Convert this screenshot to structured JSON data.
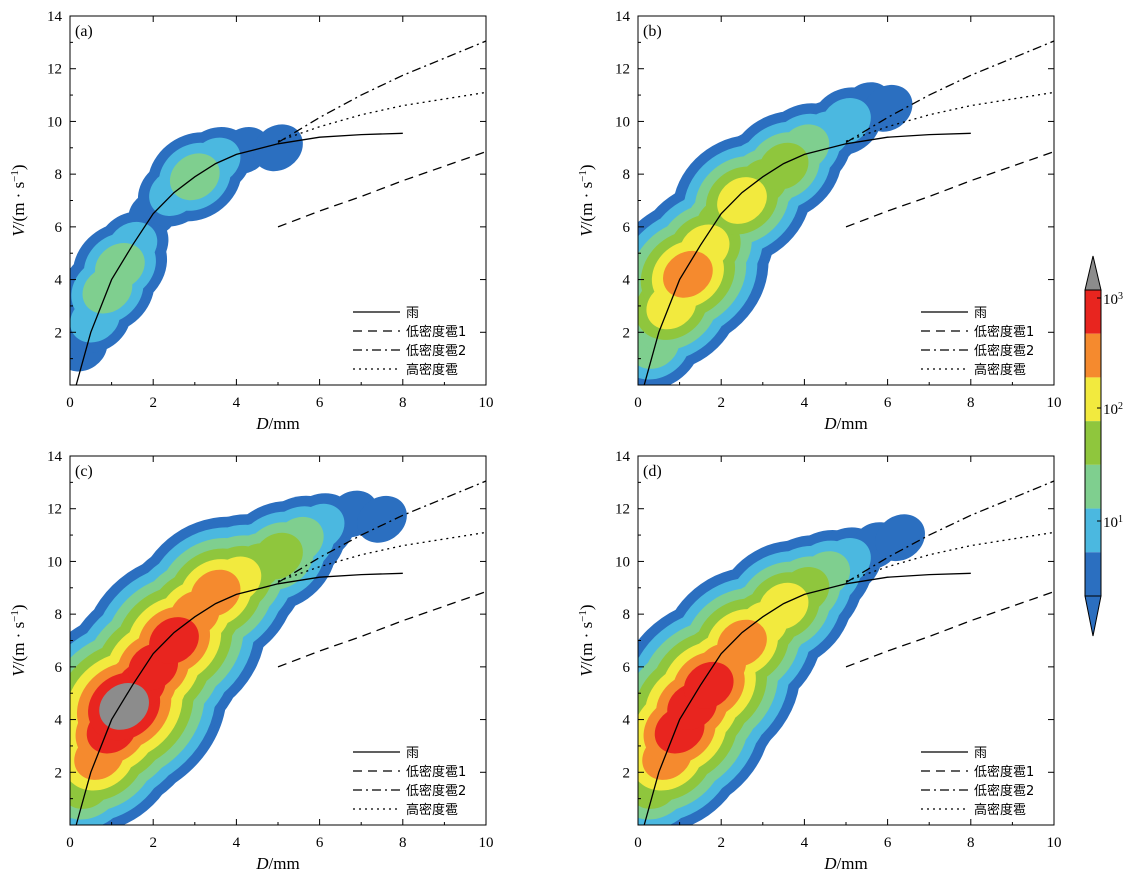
{
  "colors": {
    "levels": [
      "#2b6fc0",
      "#4bb8e0",
      "#7fcf8f",
      "#8fc63d",
      "#f2ea3e",
      "#f58a2e",
      "#e8251f",
      "#8c8c8c"
    ],
    "curve": "#000000"
  },
  "colorbar": {
    "tick_labels": [
      "10",
      "10",
      "10"
    ],
    "tick_exponents": [
      "3",
      "2",
      "1"
    ]
  },
  "chart_data": [
    {
      "type": "heatmap",
      "panel_label": "(a)",
      "xlabel_italic": "D",
      "xlabel_rest": "/mm",
      "ylabel_italic": "V",
      "ylabel_rest": "/(m · s",
      "ylabel_sup": "−1",
      "ylabel_end": ")",
      "xlim": [
        0,
        10
      ],
      "ylim": [
        0,
        14
      ],
      "xticks": [
        "0",
        "2",
        "4",
        "6",
        "8",
        "10"
      ],
      "yticks": [
        "2",
        "4",
        "6",
        "8",
        "10",
        "12",
        "14"
      ],
      "density_ridge": [
        [
          0.3,
          1.4,
          0
        ],
        [
          0.6,
          2.5,
          1
        ],
        [
          0.9,
          3.6,
          2
        ],
        [
          1.2,
          4.5,
          2
        ],
        [
          1.5,
          5.3,
          1
        ],
        [
          2.0,
          6.5,
          0
        ],
        [
          2.5,
          7.3,
          1
        ],
        [
          3.0,
          7.9,
          2
        ],
        [
          3.5,
          8.5,
          1
        ],
        [
          4.2,
          8.9,
          0
        ],
        [
          5.0,
          9.0,
          0
        ]
      ],
      "series": [
        {
          "name": "雨",
          "style": "solid",
          "x": [
            0.15,
            0.5,
            1.0,
            1.5,
            2.0,
            2.5,
            3.0,
            3.5,
            4.0,
            5.0,
            6.0,
            7.0,
            8.0
          ],
          "y": [
            0.0,
            2.0,
            4.0,
            5.3,
            6.5,
            7.3,
            7.9,
            8.4,
            8.75,
            9.15,
            9.4,
            9.5,
            9.55
          ]
        },
        {
          "name": "低密度雹1",
          "style": "dashed",
          "x": [
            5.0,
            6.0,
            7.0,
            8.0,
            9.0,
            10.0
          ],
          "y": [
            6.0,
            6.6,
            7.15,
            7.75,
            8.3,
            8.85
          ]
        },
        {
          "name": "低密度雹2",
          "style": "dashdot",
          "x": [
            5.0,
            6.0,
            7.0,
            8.0,
            9.0,
            10.0
          ],
          "y": [
            9.2,
            10.15,
            11.0,
            11.75,
            12.4,
            13.05
          ]
        },
        {
          "name": "高密度雹",
          "style": "dotted",
          "x": [
            5.0,
            6.0,
            7.0,
            8.0,
            9.0,
            10.0
          ],
          "y": [
            9.25,
            9.8,
            10.25,
            10.6,
            10.85,
            11.1
          ]
        }
      ]
    },
    {
      "type": "heatmap",
      "panel_label": "(b)",
      "xlabel_italic": "D",
      "xlabel_rest": "/mm",
      "ylabel_italic": "V",
      "ylabel_rest": "/(m · s",
      "ylabel_sup": "−1",
      "ylabel_end": ")",
      "xlim": [
        0,
        10
      ],
      "ylim": [
        0,
        14
      ],
      "xticks": [
        "0",
        "2",
        "4",
        "6",
        "8",
        "10"
      ],
      "yticks": [
        "2",
        "4",
        "6",
        "8",
        "10",
        "12",
        "14"
      ],
      "density_ridge": [
        [
          0.4,
          1.5,
          2
        ],
        [
          0.8,
          3.0,
          4
        ],
        [
          1.2,
          4.2,
          5
        ],
        [
          1.6,
          5.2,
          4
        ],
        [
          2.0,
          6.2,
          3
        ],
        [
          2.5,
          7.0,
          4
        ],
        [
          3.0,
          7.7,
          3
        ],
        [
          3.5,
          8.3,
          3
        ],
        [
          4.0,
          9.0,
          2
        ],
        [
          4.5,
          9.5,
          1
        ],
        [
          5.0,
          10.0,
          1
        ],
        [
          5.5,
          10.6,
          0
        ],
        [
          6.0,
          10.5,
          0
        ]
      ],
      "series": [
        {
          "name": "雨",
          "style": "solid",
          "x": [
            0.15,
            0.5,
            1.0,
            1.5,
            2.0,
            2.5,
            3.0,
            3.5,
            4.0,
            5.0,
            6.0,
            7.0,
            8.0
          ],
          "y": [
            0.0,
            2.0,
            4.0,
            5.3,
            6.5,
            7.3,
            7.9,
            8.4,
            8.75,
            9.15,
            9.4,
            9.5,
            9.55
          ]
        },
        {
          "name": "低密度雹1",
          "style": "dashed",
          "x": [
            5.0,
            6.0,
            7.0,
            8.0,
            9.0,
            10.0
          ],
          "y": [
            6.0,
            6.6,
            7.15,
            7.75,
            8.3,
            8.85
          ]
        },
        {
          "name": "低密度雹2",
          "style": "dashdot",
          "x": [
            5.0,
            6.0,
            7.0,
            8.0,
            9.0,
            10.0
          ],
          "y": [
            9.2,
            10.15,
            11.0,
            11.75,
            12.4,
            13.05
          ]
        },
        {
          "name": "高密度雹",
          "style": "dotted",
          "x": [
            5.0,
            6.0,
            7.0,
            8.0,
            9.0,
            10.0
          ],
          "y": [
            9.25,
            9.8,
            10.25,
            10.6,
            10.85,
            11.1
          ]
        }
      ]
    },
    {
      "type": "heatmap",
      "panel_label": "(c)",
      "xlabel_italic": "D",
      "xlabel_rest": "/mm",
      "ylabel_italic": "V",
      "ylabel_rest": "/(m · s",
      "ylabel_sup": "−1",
      "ylabel_end": ")",
      "xlim": [
        0,
        10
      ],
      "ylim": [
        0,
        14
      ],
      "xticks": [
        "0",
        "2",
        "4",
        "6",
        "8",
        "10"
      ],
      "yticks": [
        "2",
        "4",
        "6",
        "8",
        "10",
        "12",
        "14"
      ],
      "density_ridge": [
        [
          0.4,
          1.5,
          3
        ],
        [
          0.7,
          2.6,
          5
        ],
        [
          1.0,
          3.6,
          6
        ],
        [
          1.3,
          4.5,
          7
        ],
        [
          1.7,
          5.3,
          6
        ],
        [
          2.0,
          6.0,
          6
        ],
        [
          2.5,
          7.0,
          6
        ],
        [
          3.0,
          8.0,
          5
        ],
        [
          3.5,
          8.8,
          5
        ],
        [
          4.0,
          9.3,
          4
        ],
        [
          4.5,
          9.8,
          3
        ],
        [
          5.0,
          10.2,
          3
        ],
        [
          5.5,
          10.8,
          2
        ],
        [
          6.0,
          11.3,
          1
        ],
        [
          6.8,
          11.8,
          0
        ],
        [
          7.5,
          11.6,
          0
        ]
      ],
      "series": [
        {
          "name": "雨",
          "style": "solid",
          "x": [
            0.15,
            0.5,
            1.0,
            1.5,
            2.0,
            2.5,
            3.0,
            3.5,
            4.0,
            5.0,
            6.0,
            7.0,
            8.0
          ],
          "y": [
            0.0,
            2.0,
            4.0,
            5.3,
            6.5,
            7.3,
            7.9,
            8.4,
            8.75,
            9.15,
            9.4,
            9.5,
            9.55
          ]
        },
        {
          "name": "低密度雹1",
          "style": "dashed",
          "x": [
            5.0,
            6.0,
            7.0,
            8.0,
            9.0,
            10.0
          ],
          "y": [
            6.0,
            6.6,
            7.15,
            7.75,
            8.3,
            8.85
          ]
        },
        {
          "name": "低密度雹2",
          "style": "dashdot",
          "x": [
            5.0,
            6.0,
            7.0,
            8.0,
            9.0,
            10.0
          ],
          "y": [
            9.2,
            10.15,
            11.0,
            11.75,
            12.4,
            13.05
          ]
        },
        {
          "name": "高密度雹",
          "style": "dotted",
          "x": [
            5.0,
            6.0,
            7.0,
            8.0,
            9.0,
            10.0
          ],
          "y": [
            9.25,
            9.8,
            10.25,
            10.6,
            10.85,
            11.1
          ]
        }
      ]
    },
    {
      "type": "heatmap",
      "panel_label": "(d)",
      "xlabel_italic": "D",
      "xlabel_rest": "/mm",
      "ylabel_italic": "V",
      "ylabel_rest": "/(m · s",
      "ylabel_sup": "−1",
      "ylabel_end": ")",
      "xlim": [
        0,
        10
      ],
      "ylim": [
        0,
        14
      ],
      "xticks": [
        "0",
        "2",
        "4",
        "6",
        "8",
        "10"
      ],
      "yticks": [
        "2",
        "4",
        "6",
        "8",
        "10",
        "12",
        "14"
      ],
      "density_ridge": [
        [
          0.4,
          1.5,
          3
        ],
        [
          0.7,
          2.6,
          5
        ],
        [
          1.0,
          3.6,
          6
        ],
        [
          1.3,
          4.5,
          6
        ],
        [
          1.7,
          5.3,
          6
        ],
        [
          2.0,
          6.0,
          5
        ],
        [
          2.5,
          6.9,
          5
        ],
        [
          3.0,
          7.6,
          4
        ],
        [
          3.5,
          8.3,
          4
        ],
        [
          4.0,
          8.9,
          3
        ],
        [
          4.5,
          9.5,
          2
        ],
        [
          5.0,
          10.0,
          1
        ],
        [
          5.7,
          10.6,
          0
        ],
        [
          6.3,
          10.9,
          0
        ]
      ],
      "series": [
        {
          "name": "雨",
          "style": "solid",
          "x": [
            0.15,
            0.5,
            1.0,
            1.5,
            2.0,
            2.5,
            3.0,
            3.5,
            4.0,
            5.0,
            6.0,
            7.0,
            8.0
          ],
          "y": [
            0.0,
            2.0,
            4.0,
            5.3,
            6.5,
            7.3,
            7.9,
            8.4,
            8.75,
            9.15,
            9.4,
            9.5,
            9.55
          ]
        },
        {
          "name": "低密度雹1",
          "style": "dashed",
          "x": [
            5.0,
            6.0,
            7.0,
            8.0,
            9.0,
            10.0
          ],
          "y": [
            6.0,
            6.6,
            7.15,
            7.75,
            8.3,
            8.85
          ]
        },
        {
          "name": "低密度雹2",
          "style": "dashdot",
          "x": [
            5.0,
            6.0,
            7.0,
            8.0,
            9.0,
            10.0
          ],
          "y": [
            9.2,
            10.15,
            11.0,
            11.75,
            12.4,
            13.05
          ]
        },
        {
          "name": "高密度雹",
          "style": "dotted",
          "x": [
            5.0,
            6.0,
            7.0,
            8.0,
            9.0,
            10.0
          ],
          "y": [
            9.25,
            9.8,
            10.25,
            10.6,
            10.85,
            11.1
          ]
        }
      ]
    }
  ]
}
